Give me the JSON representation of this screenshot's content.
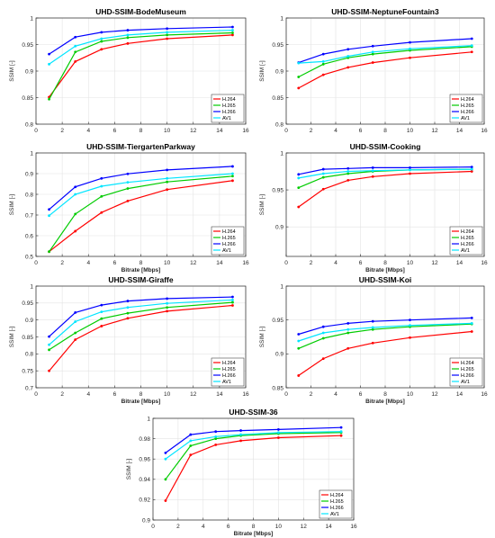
{
  "chart_data": [
    {
      "type": "line",
      "title": "UHD-SSIM-BodeMuseum",
      "xlabel": "",
      "ylabel": "SSIM [-]",
      "xlim": [
        0,
        16
      ],
      "ylim": [
        0.8,
        1
      ],
      "xticks": [
        "0",
        "2",
        "4",
        "6",
        "8",
        "10",
        "12",
        "14",
        "16"
      ],
      "yticks": [
        "0.8",
        "0.85",
        "0.9",
        "0.95",
        "1"
      ],
      "x": [
        1,
        3,
        5,
        7,
        10,
        15
      ],
      "series": [
        {
          "name": "H.264",
          "color": "#ff0000",
          "values": [
            0.851,
            0.918,
            0.941,
            0.952,
            0.961,
            0.968
          ]
        },
        {
          "name": "H.265",
          "color": "#00cc00",
          "values": [
            0.847,
            0.936,
            0.956,
            0.963,
            0.968,
            0.972
          ]
        },
        {
          "name": "H.266",
          "color": "#0000ff",
          "values": [
            0.932,
            0.964,
            0.973,
            0.977,
            0.98,
            0.983
          ]
        },
        {
          "name": "AV1",
          "color": "#00e5ff",
          "values": [
            0.913,
            0.947,
            0.961,
            0.968,
            0.973,
            0.977
          ]
        }
      ],
      "grid": true,
      "legend": "bottom-right"
    },
    {
      "type": "line",
      "title": "UHD-SSIM-NeptuneFountain3",
      "xlabel": "",
      "ylabel": "SSIM [-]",
      "xlim": [
        0,
        16
      ],
      "ylim": [
        0.8,
        1
      ],
      "xticks": [
        "0",
        "2",
        "4",
        "6",
        "8",
        "10",
        "12",
        "14",
        "16"
      ],
      "yticks": [
        "0.8",
        "0.85",
        "0.9",
        "0.95",
        "1"
      ],
      "x": [
        1,
        3,
        5,
        7,
        10,
        15
      ],
      "series": [
        {
          "name": "H.264",
          "color": "#ff0000",
          "values": [
            0.868,
            0.893,
            0.907,
            0.916,
            0.925,
            0.936
          ]
        },
        {
          "name": "H.265",
          "color": "#00cc00",
          "values": [
            0.889,
            0.913,
            0.925,
            0.932,
            0.939,
            0.946
          ]
        },
        {
          "name": "H.266",
          "color": "#0000ff",
          "values": [
            0.916,
            0.932,
            0.941,
            0.947,
            0.954,
            0.961
          ]
        },
        {
          "name": "AV1",
          "color": "#00e5ff",
          "values": [
            0.915,
            0.918,
            0.928,
            0.936,
            0.942,
            0.948
          ]
        }
      ],
      "grid": true,
      "legend": "bottom-right"
    },
    {
      "type": "line",
      "title": "UHD-SSIM-TiergartenParkway",
      "xlabel": "Bitrate [Mbps]",
      "ylabel": "SSIM [-]",
      "xlim": [
        0,
        16
      ],
      "ylim": [
        0.5,
        1
      ],
      "xticks": [
        "0",
        "2",
        "4",
        "6",
        "8",
        "10",
        "12",
        "14",
        "16"
      ],
      "yticks": [
        "0.5",
        "0.6",
        "0.7",
        "0.8",
        "0.9",
        "1"
      ],
      "x": [
        1,
        3,
        5,
        7,
        10,
        15
      ],
      "series": [
        {
          "name": "H.264",
          "color": "#ff0000",
          "values": [
            0.523,
            0.622,
            0.712,
            0.768,
            0.823,
            0.866
          ]
        },
        {
          "name": "H.265",
          "color": "#00cc00",
          "values": [
            0.523,
            0.705,
            0.79,
            0.828,
            0.86,
            0.888
          ]
        },
        {
          "name": "H.266",
          "color": "#0000ff",
          "values": [
            0.727,
            0.836,
            0.877,
            0.899,
            0.918,
            0.935
          ]
        },
        {
          "name": "AV1",
          "color": "#00e5ff",
          "values": [
            0.697,
            0.8,
            0.839,
            0.858,
            0.877,
            0.9
          ]
        }
      ],
      "grid": true,
      "legend": "bottom-right"
    },
    {
      "type": "line",
      "title": "UHD-SSIM-Cooking",
      "xlabel": "Bitrate [Mbps]",
      "ylabel": "SSIM [-]",
      "xlim": [
        0,
        16
      ],
      "ylim": [
        0.86,
        1
      ],
      "xticks": [
        "0",
        "2",
        "4",
        "6",
        "8",
        "10",
        "12",
        "14",
        "16"
      ],
      "yticks": [
        "0.9",
        "0.95",
        "1"
      ],
      "x": [
        1,
        3,
        5,
        7,
        10,
        15
      ],
      "series": [
        {
          "name": "H.264",
          "color": "#ff0000",
          "values": [
            0.927,
            0.951,
            0.963,
            0.968,
            0.972,
            0.975
          ]
        },
        {
          "name": "H.265",
          "color": "#00cc00",
          "values": [
            0.953,
            0.967,
            0.972,
            0.975,
            0.977,
            0.978
          ]
        },
        {
          "name": "H.266",
          "color": "#0000ff",
          "values": [
            0.971,
            0.978,
            0.979,
            0.98,
            0.98,
            0.981
          ]
        },
        {
          "name": "AV1",
          "color": "#00e5ff",
          "values": [
            0.966,
            0.972,
            0.975,
            0.976,
            0.977,
            0.978
          ]
        }
      ],
      "grid": true,
      "legend": "bottom-right"
    },
    {
      "type": "line",
      "title": "UHD-SSIM-Giraffe",
      "xlabel": "Bitrate [Mbps]",
      "ylabel": "SSIM [-]",
      "xlim": [
        0,
        16
      ],
      "ylim": [
        0.7,
        1
      ],
      "xticks": [
        "0",
        "2",
        "4",
        "6",
        "8",
        "10",
        "12",
        "14",
        "16"
      ],
      "yticks": [
        "0.7",
        "0.75",
        "0.8",
        "0.85",
        "0.9",
        "0.95",
        "1"
      ],
      "x": [
        1,
        3,
        5,
        7,
        10,
        15
      ],
      "series": [
        {
          "name": "H.264",
          "color": "#ff0000",
          "values": [
            0.75,
            0.842,
            0.882,
            0.905,
            0.926,
            0.943
          ]
        },
        {
          "name": "H.265",
          "color": "#00cc00",
          "values": [
            0.812,
            0.862,
            0.904,
            0.92,
            0.937,
            0.952
          ]
        },
        {
          "name": "H.266",
          "color": "#0000ff",
          "values": [
            0.851,
            0.922,
            0.944,
            0.956,
            0.963,
            0.968
          ]
        },
        {
          "name": "AV1",
          "color": "#00e5ff",
          "values": [
            0.827,
            0.895,
            0.924,
            0.937,
            0.949,
            0.959
          ]
        }
      ],
      "grid": true,
      "legend": "bottom-right"
    },
    {
      "type": "line",
      "title": "UHD-SSIM-Koi",
      "xlabel": "Bitrate [Mbps]",
      "ylabel": "SSIM [-]",
      "xlim": [
        0,
        16
      ],
      "ylim": [
        0.85,
        1
      ],
      "xticks": [
        "0",
        "2",
        "4",
        "6",
        "8",
        "10",
        "12",
        "14",
        "16"
      ],
      "yticks": [
        "0.85",
        "0.9",
        "0.95",
        "1"
      ],
      "x": [
        1,
        3,
        5,
        7,
        10,
        15
      ],
      "series": [
        {
          "name": "H.264",
          "color": "#ff0000",
          "values": [
            0.868,
            0.893,
            0.908,
            0.916,
            0.924,
            0.933
          ]
        },
        {
          "name": "H.265",
          "color": "#00cc00",
          "values": [
            0.908,
            0.923,
            0.931,
            0.936,
            0.94,
            0.944
          ]
        },
        {
          "name": "H.266",
          "color": "#0000ff",
          "values": [
            0.929,
            0.94,
            0.945,
            0.948,
            0.95,
            0.953
          ]
        },
        {
          "name": "AV1",
          "color": "#00e5ff",
          "values": [
            0.919,
            0.931,
            0.936,
            0.939,
            0.942,
            0.945
          ]
        }
      ],
      "grid": true,
      "legend": "bottom-right"
    },
    {
      "type": "line",
      "title": "UHD-SSIM-36",
      "xlabel": "Bitrate [Mbps]",
      "ylabel": "SSIM [-]",
      "xlim": [
        0,
        16
      ],
      "ylim": [
        0.9,
        1
      ],
      "xticks": [
        "0",
        "2",
        "4",
        "6",
        "8",
        "10",
        "12",
        "14",
        "16"
      ],
      "yticks": [
        "0.9",
        "0.92",
        "0.94",
        "0.96",
        "0.98",
        "1"
      ],
      "x": [
        1,
        3,
        5,
        7,
        10,
        15
      ],
      "series": [
        {
          "name": "H.264",
          "color": "#ff0000",
          "values": [
            0.919,
            0.964,
            0.974,
            0.978,
            0.981,
            0.983
          ]
        },
        {
          "name": "H.265",
          "color": "#00cc00",
          "values": [
            0.94,
            0.973,
            0.98,
            0.983,
            0.985,
            0.986
          ]
        },
        {
          "name": "H.266",
          "color": "#0000ff",
          "values": [
            0.966,
            0.984,
            0.987,
            0.988,
            0.989,
            0.991
          ]
        },
        {
          "name": "AV1",
          "color": "#00e5ff",
          "values": [
            0.96,
            0.978,
            0.982,
            0.984,
            0.986,
            0.987
          ]
        }
      ],
      "grid": true,
      "legend": "bottom-right"
    }
  ]
}
